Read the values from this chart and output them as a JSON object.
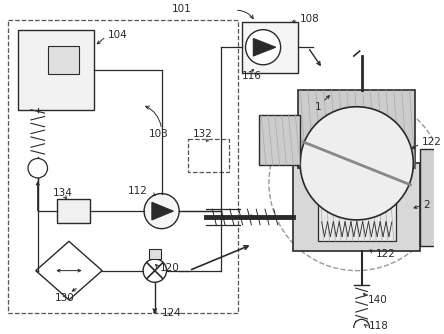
{
  "bg_color": "#ffffff",
  "lc": "#2a2a2a",
  "gray1": "#cccccc",
  "gray2": "#aaaaaa",
  "gray3": "#888888",
  "gray4": "#666666",
  "hatch_color": "#999999",
  "figsize": [
    4.44,
    3.34
  ],
  "dpi": 100,
  "label_fs": 7.5
}
